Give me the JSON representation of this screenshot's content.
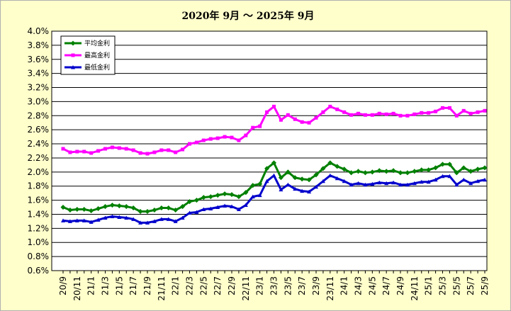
{
  "chart_data": {
    "type": "line",
    "title": "2020年  9月  ～  2025年  9月",
    "ylim": [
      0.006,
      0.04
    ],
    "y_step": 0.002,
    "y_ticks": [
      "0.6%",
      "0.8%",
      "1.0%",
      "1.2%",
      "1.4%",
      "1.6%",
      "1.8%",
      "2.0%",
      "2.2%",
      "2.4%",
      "2.6%",
      "2.8%",
      "3.0%",
      "3.2%",
      "3.4%",
      "3.6%",
      "3.8%",
      "4.0%"
    ],
    "grid": true,
    "legend_position": "top-left",
    "x": [
      "20/9",
      "20/10",
      "20/11",
      "20/12",
      "21/1",
      "21/2",
      "21/3",
      "21/4",
      "21/5",
      "21/6",
      "21/7",
      "21/8",
      "21/9",
      "21/10",
      "21/11",
      "21/12",
      "22/1",
      "22/2",
      "22/3",
      "22/4",
      "22/5",
      "22/6",
      "22/7",
      "22/8",
      "22/9",
      "22/10",
      "22/11",
      "22/12",
      "23/1",
      "23/2",
      "23/3",
      "23/4",
      "23/5",
      "23/6",
      "23/7",
      "23/8",
      "23/9",
      "23/10",
      "23/11",
      "23/12",
      "24/1",
      "24/2",
      "24/3",
      "24/4",
      "24/5",
      "24/6",
      "24/7",
      "24/8",
      "24/9",
      "24/10",
      "24/11",
      "24/12",
      "25/1",
      "25/2",
      "25/3",
      "25/4",
      "25/5",
      "25/6",
      "25/7",
      "25/8",
      "25/9"
    ],
    "x_tick_labels": [
      "20/9",
      "20/11",
      "21/1",
      "21/3",
      "21/5",
      "21/7",
      "21/9",
      "21/11",
      "22/1",
      "22/3",
      "22/5",
      "22/7",
      "22/9",
      "22/11",
      "23/1",
      "23/3",
      "23/5",
      "23/7",
      "23/9",
      "23/11",
      "24/1",
      "24/3",
      "24/5",
      "24/7",
      "24/9",
      "24/11",
      "25/1",
      "25/3",
      "25/5",
      "25/7",
      "25/9"
    ],
    "series": [
      {
        "name": "平均金利",
        "color": "#008000",
        "values": [
          0.015,
          0.0146,
          0.0147,
          0.0147,
          0.0145,
          0.0148,
          0.0151,
          0.0153,
          0.0152,
          0.0151,
          0.0149,
          0.0144,
          0.0144,
          0.0146,
          0.0149,
          0.0149,
          0.0146,
          0.0151,
          0.0158,
          0.016,
          0.0164,
          0.0165,
          0.0167,
          0.0169,
          0.0168,
          0.0165,
          0.0171,
          0.0181,
          0.0183,
          0.0205,
          0.0213,
          0.0192,
          0.02,
          0.0192,
          0.019,
          0.0189,
          0.0196,
          0.0205,
          0.0213,
          0.0208,
          0.0204,
          0.0199,
          0.0201,
          0.0199,
          0.02,
          0.0202,
          0.0201,
          0.0202,
          0.0199,
          0.0199,
          0.0201,
          0.0203,
          0.0203,
          0.0206,
          0.0211,
          0.0211,
          0.0199,
          0.0206,
          0.0201,
          0.0204,
          0.0206
        ]
      },
      {
        "name": "最高金利",
        "color": "#ff00ff",
        "values": [
          0.0233,
          0.0228,
          0.0229,
          0.0229,
          0.0227,
          0.023,
          0.0233,
          0.0235,
          0.0234,
          0.0233,
          0.0231,
          0.0227,
          0.0226,
          0.0228,
          0.0231,
          0.0231,
          0.0228,
          0.0232,
          0.024,
          0.0242,
          0.0245,
          0.0247,
          0.0248,
          0.025,
          0.0249,
          0.0245,
          0.0252,
          0.0263,
          0.0265,
          0.0285,
          0.0293,
          0.0274,
          0.0281,
          0.0275,
          0.0271,
          0.027,
          0.0277,
          0.0285,
          0.0293,
          0.0289,
          0.0285,
          0.0281,
          0.0283,
          0.0281,
          0.0281,
          0.0283,
          0.0282,
          0.0283,
          0.028,
          0.028,
          0.0282,
          0.0284,
          0.0284,
          0.0286,
          0.0291,
          0.0291,
          0.028,
          0.0287,
          0.0283,
          0.0285,
          0.0287
        ]
      },
      {
        "name": "最低金利",
        "color": "#0000cc",
        "values": [
          0.0131,
          0.013,
          0.0131,
          0.0131,
          0.0129,
          0.0132,
          0.0135,
          0.0137,
          0.0136,
          0.0135,
          0.0133,
          0.0128,
          0.0128,
          0.013,
          0.0133,
          0.0133,
          0.013,
          0.0135,
          0.0142,
          0.0143,
          0.0147,
          0.0148,
          0.015,
          0.0152,
          0.0151,
          0.0147,
          0.0153,
          0.0165,
          0.0167,
          0.0187,
          0.0195,
          0.0175,
          0.0182,
          0.0176,
          0.0173,
          0.0172,
          0.0179,
          0.0187,
          0.0195,
          0.0191,
          0.0187,
          0.0182,
          0.0184,
          0.0182,
          0.0183,
          0.0185,
          0.0184,
          0.0185,
          0.0182,
          0.0182,
          0.0184,
          0.0186,
          0.0186,
          0.0189,
          0.0194,
          0.0194,
          0.0182,
          0.0189,
          0.0184,
          0.0187,
          0.0189
        ]
      }
    ]
  }
}
